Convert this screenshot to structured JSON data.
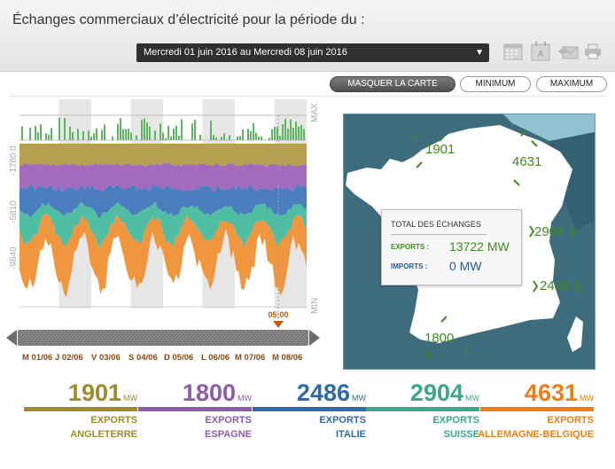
{
  "header": {
    "title": "Échanges commerciaux d’électricité pour la période du :",
    "period_value": "Mercredi 01 juin 2016 au Mercredi 08 juin 2016"
  },
  "toolbar": {
    "buttons": {
      "masquer": "MASQUER LA CARTE",
      "minimum": "MINIMUM",
      "maximum": "MAXIMUM"
    }
  },
  "chart": {
    "y_ticks": [
      "0",
      "-1780",
      "-5810",
      "-9840"
    ],
    "max_label": "MAX",
    "min_label": "MIN",
    "time_marker": "05:00",
    "days": [
      "M 01/06",
      "J 02/06",
      "V 03/06",
      "S 04/06",
      "D 05/06",
      "L 06/06",
      "M 07/06",
      "M 08/06"
    ],
    "colors": {
      "angleterre": "#b5a04f",
      "espagne": "#a36bbd",
      "italie": "#4a7ebf",
      "suisse": "#4fbea3",
      "allemagne": "#f0963f",
      "export_green": "#5cb85c",
      "marker": "#c45a14"
    }
  },
  "map": {
    "summary": {
      "title": "TOTAL DES ÉCHANGES",
      "exports_label": "EXPORTS :",
      "exports_value": "13722 MW",
      "imports_label": "IMPORTS :",
      "imports_value": "0 MW"
    },
    "values": {
      "angleterre": "1901",
      "allemagne": "4631",
      "suisse": "2904",
      "italie": "2486",
      "espagne": "1800"
    }
  },
  "stats": [
    {
      "value": "1901",
      "unit": "MW",
      "label1": "EXPORTS",
      "label2": "ANGLETERRE",
      "color": "#a08b2c"
    },
    {
      "value": "1800",
      "unit": "MW",
      "label1": "EXPORTS",
      "label2": "ESPAGNE",
      "color": "#8e5bab"
    },
    {
      "value": "2486",
      "unit": "MW",
      "label1": "EXPORTS",
      "label2": "ITALIE",
      "color": "#2f6aa8"
    },
    {
      "value": "2904",
      "unit": "MW",
      "label1": "EXPORTS",
      "label2": "SUISSE",
      "color": "#3aa78c"
    },
    {
      "value": "4631",
      "unit": "MW",
      "label1": "EXPORTS",
      "label2": "ALLEMAGNE-BELGIQUE",
      "color": "#ef7d14"
    }
  ]
}
